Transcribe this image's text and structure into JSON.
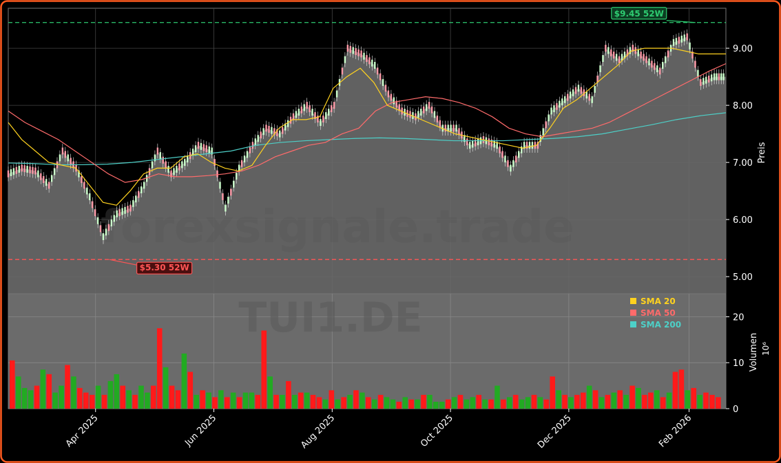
{
  "chart_data": {
    "type": "candlestick",
    "ticker": "TUI1.DE",
    "watermark": "forexsignale.trade",
    "colors": {
      "background": "#000000",
      "border": "#ff5a1f",
      "price_area": "#6b6b6b",
      "up": "#22aa22",
      "down": "#ff1a1a",
      "sma20": "#ffd21f",
      "sma50": "#ff6b6b",
      "sma200": "#4dd0c8",
      "high52": "#2ecc71",
      "low52": "#ff5555",
      "axis_text": "#ffffff"
    },
    "price_panel": {
      "ylabel": "Preis",
      "ylim": [
        4.7,
        9.7
      ],
      "yticks": [
        5.0,
        6.0,
        7.0,
        8.0,
        9.0
      ],
      "ytick_labels": [
        "5.00",
        "6.00",
        "7.00",
        "8.00",
        "9.00"
      ]
    },
    "volume_panel": {
      "ylabel": "Volumen",
      "unit_label": "10⁶",
      "ylim": [
        0,
        25
      ],
      "yticks": [
        0,
        10,
        20
      ],
      "ytick_labels": [
        "0",
        "10",
        "20"
      ]
    },
    "x_axis": {
      "domain": [
        "2025-02-15",
        "2026-02-20"
      ],
      "ticks": [
        "2025-04-01",
        "2025-06-01",
        "2025-08-01",
        "2025-10-01",
        "2025-12-01",
        "2026-02-01"
      ],
      "tick_labels": [
        "Apr 2025",
        "Jun 2025",
        "Aug 2025",
        "Oct 2025",
        "Dec 2025",
        "Feb 2026"
      ]
    },
    "annotations": {
      "high_52w": {
        "label": "$9.45 52W",
        "value": 9.45,
        "date": "2026-02-05"
      },
      "low_52w": {
        "label": "$5.30 52W",
        "value": 5.3,
        "date": "2025-04-07"
      }
    },
    "legend": {
      "position": "top-right of volume panel",
      "items": [
        {
          "label": "SMA 20",
          "color": "#ffd21f"
        },
        {
          "label": "SMA 50",
          "color": "#ff6b6b"
        },
        {
          "label": "SMA 200",
          "color": "#4dd0c8"
        }
      ]
    },
    "close_series": {
      "dates": [
        "2025-02-15",
        "2025-02-22",
        "2025-03-01",
        "2025-03-08",
        "2025-03-15",
        "2025-03-22",
        "2025-03-29",
        "2025-04-05",
        "2025-04-12",
        "2025-04-19",
        "2025-04-26",
        "2025-05-03",
        "2025-05-10",
        "2025-05-17",
        "2025-05-24",
        "2025-05-31",
        "2025-06-07",
        "2025-06-14",
        "2025-06-21",
        "2025-06-28",
        "2025-07-05",
        "2025-07-12",
        "2025-07-19",
        "2025-07-26",
        "2025-08-02",
        "2025-08-09",
        "2025-08-16",
        "2025-08-23",
        "2025-08-30",
        "2025-09-06",
        "2025-09-13",
        "2025-09-20",
        "2025-09-27",
        "2025-10-04",
        "2025-10-11",
        "2025-10-18",
        "2025-10-25",
        "2025-11-01",
        "2025-11-08",
        "2025-11-15",
        "2025-11-22",
        "2025-11-29",
        "2025-12-06",
        "2025-12-13",
        "2025-12-20",
        "2025-12-27",
        "2026-01-03",
        "2026-01-10",
        "2026-01-17",
        "2026-01-24",
        "2026-01-31",
        "2026-02-07",
        "2026-02-14",
        "2026-02-20"
      ],
      "close": [
        6.8,
        6.9,
        6.85,
        6.6,
        7.2,
        6.9,
        6.4,
        5.7,
        6.1,
        6.2,
        6.6,
        7.2,
        6.8,
        7.0,
        7.3,
        7.2,
        6.2,
        6.9,
        7.3,
        7.6,
        7.5,
        7.8,
        8.0,
        7.7,
        8.0,
        9.0,
        8.9,
        8.7,
        8.2,
        7.9,
        7.8,
        8.0,
        7.6,
        7.6,
        7.3,
        7.4,
        7.3,
        6.9,
        7.3,
        7.3,
        7.9,
        8.1,
        8.3,
        8.1,
        9.0,
        8.8,
        9.0,
        8.8,
        8.6,
        9.1,
        9.2,
        8.4,
        8.5,
        8.5
      ],
      "sma20": [
        7.7,
        7.4,
        7.2,
        7.0,
        6.95,
        6.9,
        6.6,
        6.3,
        6.25,
        6.5,
        6.8,
        6.9,
        6.9,
        7.1,
        7.15,
        7.0,
        6.9,
        6.85,
        6.95,
        7.3,
        7.6,
        7.75,
        7.75,
        7.8,
        8.3,
        8.5,
        8.65,
        8.4,
        8.0,
        7.9,
        7.8,
        7.7,
        7.6,
        7.5,
        7.45,
        7.4,
        7.35,
        7.3,
        7.25,
        7.3,
        7.6,
        7.95,
        8.1,
        8.3,
        8.5,
        8.7,
        8.95,
        9.0,
        9.0,
        9.0,
        8.95,
        8.9,
        8.9,
        8.9
      ],
      "sma50": [
        7.9,
        7.7,
        7.55,
        7.4,
        7.2,
        7.0,
        6.8,
        6.65,
        6.7,
        6.8,
        6.75,
        6.75,
        6.77,
        6.8,
        6.85,
        6.95,
        7.1,
        7.2,
        7.3,
        7.35,
        7.5,
        7.6,
        7.9,
        8.05,
        8.1,
        8.15,
        8.12,
        8.05,
        7.95,
        7.8,
        7.6,
        7.5,
        7.45,
        7.5,
        7.55,
        7.6,
        7.7,
        7.85,
        8.0,
        8.15,
        8.3,
        8.45,
        8.6,
        8.73
      ],
      "sma50_start": "2025-02-15",
      "sma200": [
        6.99,
        6.98,
        6.96,
        6.96,
        6.97,
        7.0,
        7.05,
        7.1,
        7.15,
        7.2,
        7.3,
        7.35,
        7.38,
        7.4,
        7.42,
        7.43,
        7.42,
        7.4,
        7.38,
        7.38,
        7.38,
        7.4,
        7.42,
        7.45,
        7.5,
        7.58,
        7.66,
        7.75,
        7.82,
        7.87
      ],
      "sma200_start": "2025-02-15"
    },
    "volume_series": {
      "values_millions": [
        10.5,
        7,
        4.5,
        4,
        5,
        8.5,
        7.5,
        3.5,
        5,
        9.5,
        7,
        4.5,
        3.5,
        3,
        5,
        3,
        6,
        7.5,
        5,
        4,
        3,
        5,
        3.5,
        5,
        17.5,
        9,
        5,
        4,
        12,
        8,
        3,
        4,
        3.5,
        2.5,
        4,
        2.5,
        3.5,
        2.5,
        3.5,
        3.5,
        3,
        17,
        7,
        3,
        3,
        6,
        3,
        3.5,
        3.5,
        3,
        2.5,
        2,
        4,
        2,
        2.5,
        3,
        4,
        3.5,
        2.5,
        2,
        3,
        2.5,
        2,
        1.5,
        2.5,
        2,
        2,
        3,
        3,
        1.5,
        1.5,
        2,
        2.5,
        3,
        2,
        2.5,
        3,
        2,
        2,
        5,
        2,
        2.5,
        3,
        2,
        2.5,
        3,
        2.5,
        2,
        7,
        4,
        3,
        2.5,
        3,
        3.5,
        5,
        4,
        2.5,
        3,
        3.5,
        4,
        3,
        5,
        4.5,
        3,
        3.5,
        4,
        2.5,
        3.5,
        8,
        8.5,
        4,
        4.5,
        3,
        3.5,
        3,
        2.5
      ],
      "up_flags": [
        0,
        1,
        1,
        1,
        0,
        1,
        0,
        1,
        1,
        0,
        1,
        0,
        0,
        0,
        1,
        0,
        1,
        1,
        0,
        1,
        0,
        1,
        1,
        0,
        0,
        1,
        0,
        0,
        1,
        0,
        1,
        0,
        1,
        0,
        1,
        0,
        1,
        0,
        1,
        1,
        0,
        0,
        1,
        0,
        1,
        0,
        1,
        0,
        1,
        0,
        0,
        1,
        0,
        1,
        0,
        1,
        0,
        1,
        0,
        1,
        0,
        1,
        1,
        0,
        1,
        0,
        1,
        0,
        1,
        1,
        1,
        0,
        1,
        0,
        1,
        1,
        0,
        1,
        0,
        1,
        0,
        1,
        0,
        1,
        1,
        0,
        1,
        0,
        0,
        1,
        0,
        1,
        0,
        0,
        1,
        0,
        1,
        0,
        1,
        0,
        1,
        0,
        1,
        0,
        0,
        1,
        0,
        1,
        0,
        0,
        1,
        0,
        1,
        0,
        0,
        0
      ]
    }
  }
}
